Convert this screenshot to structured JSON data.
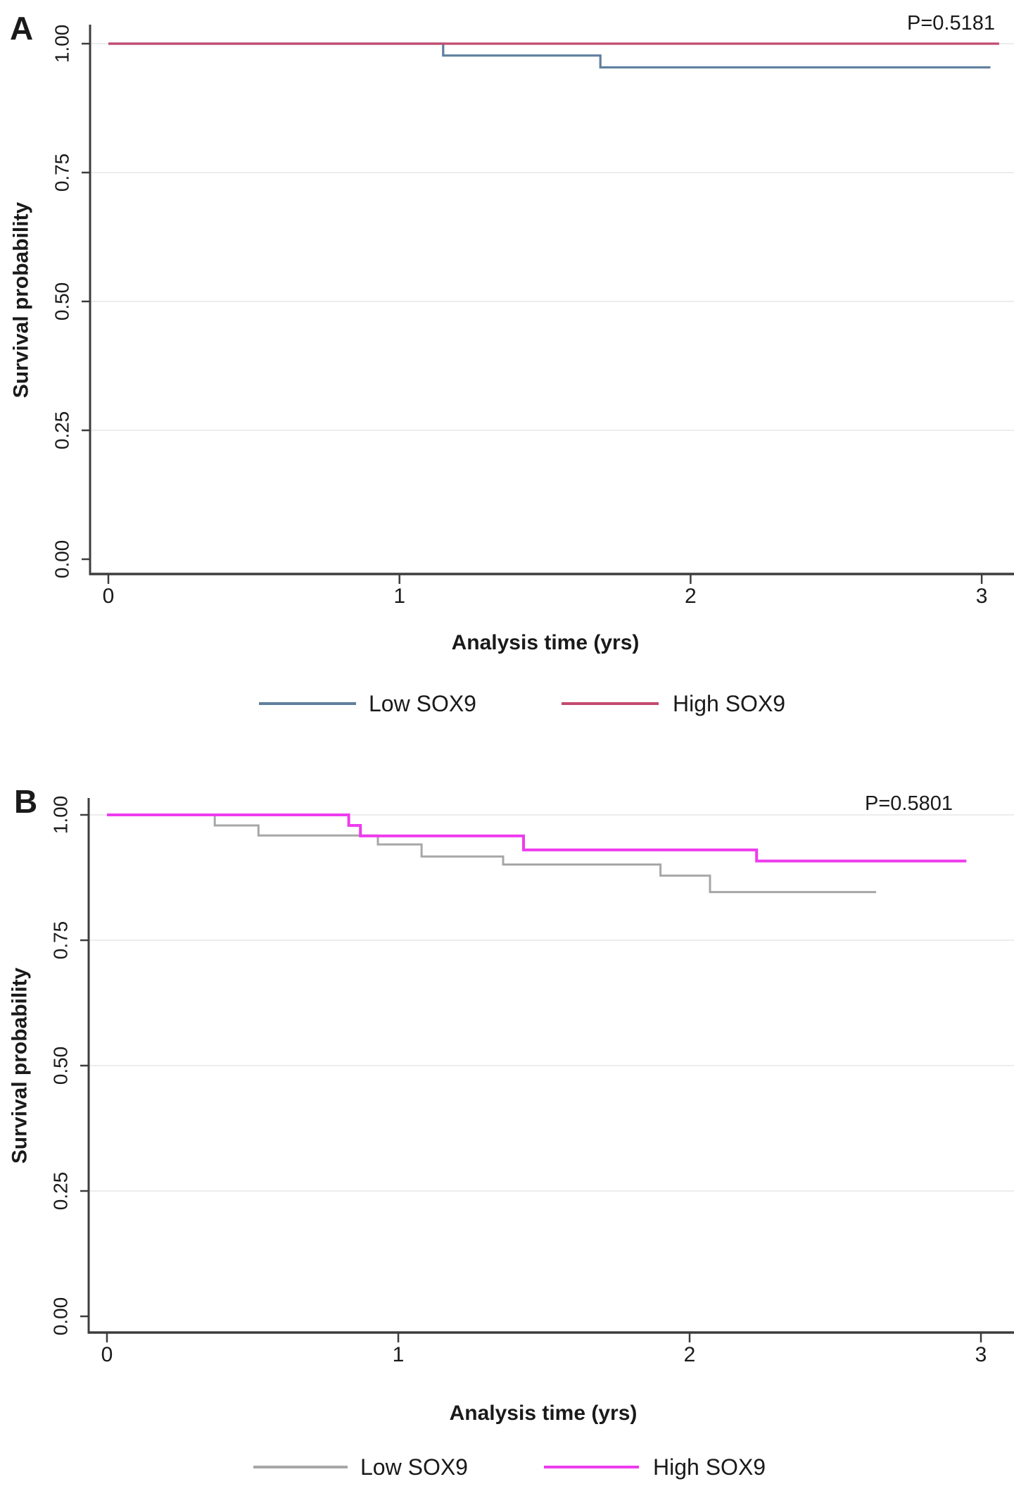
{
  "figure": {
    "background": "#ffffff",
    "axis_color": "#3d3d3d",
    "grid_color": "#ededed",
    "text_color": "#1a1a1a"
  },
  "chart_data": [
    {
      "type": "line",
      "subtype": "kaplan-meier-step",
      "panel_label": "A",
      "p_value": "P=0.5181",
      "xlabel": "Analysis time (yrs)",
      "ylabel": "Survival probability",
      "xlim": [
        0,
        3
      ],
      "ylim": [
        0,
        1
      ],
      "xticks": [
        "0",
        "1",
        "2",
        "3"
      ],
      "ytick_labels": [
        "0.00",
        "0.25",
        "0.50",
        "0.75",
        "1.00"
      ],
      "ytick_values": [
        0.0,
        0.25,
        0.5,
        0.75,
        1.0
      ],
      "grid": "horizontal",
      "legend_position": "bottom",
      "series": [
        {
          "name": "Low SOX9",
          "color": "#5f7f9e",
          "stroke_width": 3.2,
          "steps": [
            [
              0,
              1.0
            ],
            [
              1.15,
              0.977
            ],
            [
              1.69,
              0.954
            ],
            [
              3.03,
              0.954
            ]
          ]
        },
        {
          "name": "High SOX9",
          "color": "#c34b6f",
          "stroke_width": 3.2,
          "steps": [
            [
              0,
              1.0
            ],
            [
              3.06,
              1.0
            ]
          ]
        }
      ]
    },
    {
      "type": "line",
      "subtype": "kaplan-meier-step",
      "panel_label": "B",
      "p_value": "P=0.5801",
      "xlabel": "Analysis time (yrs)",
      "ylabel": "Survival probability",
      "xlim": [
        0,
        3
      ],
      "ylim": [
        0,
        1
      ],
      "xticks": [
        "0",
        "1",
        "2",
        "3"
      ],
      "ytick_labels": [
        "0.00",
        "0.25",
        "0.50",
        "0.75",
        "1.00"
      ],
      "ytick_values": [
        0.0,
        0.25,
        0.5,
        0.75,
        1.0
      ],
      "grid": "horizontal",
      "legend_position": "bottom",
      "series": [
        {
          "name": "Low SOX9",
          "color": "#a7a7a7",
          "stroke_width": 3.0,
          "steps": [
            [
              0,
              1.0
            ],
            [
              0.37,
              0.979
            ],
            [
              0.52,
              0.959
            ],
            [
              0.93,
              0.941
            ],
            [
              1.08,
              0.917
            ],
            [
              1.36,
              0.901
            ],
            [
              1.9,
              0.879
            ],
            [
              2.07,
              0.846
            ],
            [
              2.64,
              0.846
            ]
          ]
        },
        {
          "name": "High SOX9",
          "color": "#ee3bee",
          "stroke_width": 4.0,
          "steps": [
            [
              0,
              1.0
            ],
            [
              0.83,
              0.979
            ],
            [
              0.87,
              0.958
            ],
            [
              1.43,
              0.93
            ],
            [
              2.23,
              0.908
            ],
            [
              2.95,
              0.908
            ]
          ]
        }
      ]
    }
  ]
}
